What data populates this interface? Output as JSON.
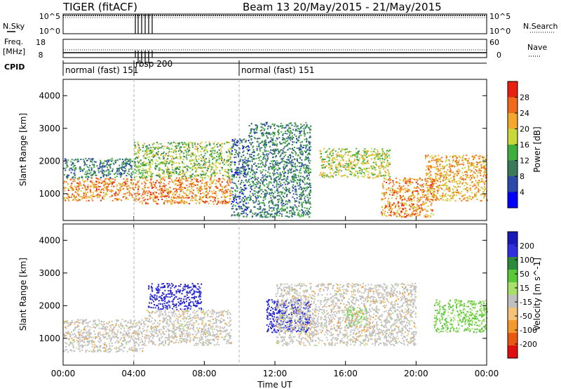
{
  "header": {
    "title_left": "TIGER (fitACF)",
    "title_right": "Beam 13 20/May/2015 - 21/May/2015"
  },
  "strips": {
    "nsky_label": "N.Sky",
    "nsky_ticks": [
      "10^5",
      "10^0"
    ],
    "nsearch_label": "N.Search",
    "nsearch_ticks": [
      "10^5",
      "10^0"
    ],
    "freq_label_1": "Freq.",
    "freq_label_2": "[MHz]",
    "freq_ticks": [
      "18",
      "8"
    ],
    "nave_label": "Nave",
    "nave_ticks": [
      "60",
      "0"
    ],
    "cpid_label": "CPID",
    "cpid_modes": [
      {
        "label": "normal (fast) 151",
        "start_hour": 0
      },
      {
        "label": "rbsp 200",
        "start_hour": 4
      },
      {
        "label": "normal (fast) 151",
        "start_hour": 10
      }
    ]
  },
  "chart_data": [
    {
      "type": "heatmap",
      "panel": "power",
      "ylabel": "Slant Range [km]",
      "ylim": [
        180,
        4500
      ],
      "xlim_hours": [
        0,
        24
      ],
      "yticks": [
        "1000",
        "2000",
        "3000",
        "4000"
      ],
      "colorbar": {
        "label": "Power [dB]",
        "levels": [
          0,
          4,
          8,
          12,
          16,
          20,
          24,
          28,
          32
        ],
        "tick_labels": [
          "4",
          "8",
          "12",
          "16",
          "20",
          "24",
          "28"
        ],
        "colors": [
          "#0000ff",
          "#2a4ba8",
          "#3a7a5a",
          "#3fae3f",
          "#c8d83a",
          "#f2a82c",
          "#f06a1c",
          "#e82010"
        ]
      },
      "bands": [
        {
          "hours": [
            0.0,
            4.0
          ],
          "range_km": [
            800,
            1500
          ],
          "power_db": 24
        },
        {
          "hours": [
            0.0,
            4.0
          ],
          "range_km": [
            1500,
            2100
          ],
          "power_db": 10
        },
        {
          "hours": [
            4.0,
            9.5
          ],
          "range_km": [
            700,
            1500
          ],
          "power_db": 24
        },
        {
          "hours": [
            4.0,
            9.5
          ],
          "range_km": [
            1500,
            2600
          ],
          "power_db": 16
        },
        {
          "hours": [
            9.5,
            10.5
          ],
          "range_km": [
            300,
            2700
          ],
          "power_db": 8
        },
        {
          "hours": [
            10.5,
            14.0
          ],
          "range_km": [
            300,
            3200
          ],
          "power_db": 10
        },
        {
          "hours": [
            14.5,
            18.5
          ],
          "range_km": [
            1500,
            2400
          ],
          "power_db": 18
        },
        {
          "hours": [
            18.0,
            21.0
          ],
          "range_km": [
            300,
            1500
          ],
          "power_db": 24
        },
        {
          "hours": [
            20.5,
            24.0
          ],
          "range_km": [
            800,
            2200
          ],
          "power_db": 22
        }
      ]
    },
    {
      "type": "heatmap",
      "panel": "velocity",
      "ylabel": "Slant Range [km]",
      "xlabel": "Time UT",
      "ylim": [
        180,
        4500
      ],
      "xlim_hours": [
        0,
        24
      ],
      "yticks": [
        "1000",
        "2000",
        "3000",
        "4000"
      ],
      "xticks": [
        "00:00",
        "04:00",
        "08:00",
        "12:00",
        "16:00",
        "20:00",
        "00:00"
      ],
      "colorbar": {
        "label": "Velocity [m s^-1]",
        "tick_labels": [
          "200",
          "100",
          "50",
          "15",
          "-15",
          "-50",
          "-100",
          "-200"
        ],
        "colors": [
          "#1a1ab8",
          "#3030e0",
          "#2e8a3a",
          "#59c83a",
          "#a6e06a",
          "#c0c0c0",
          "#f5c27a",
          "#f29a2e",
          "#e85a14",
          "#e01010"
        ]
      },
      "bands": [
        {
          "hours": [
            0.0,
            4.5
          ],
          "range_km": [
            600,
            1600
          ],
          "velocity": 0
        },
        {
          "hours": [
            4.5,
            9.5
          ],
          "range_km": [
            800,
            1900
          ],
          "velocity": 0
        },
        {
          "hours": [
            4.8,
            7.8
          ],
          "range_km": [
            1900,
            2700
          ],
          "velocity": 180
        },
        {
          "hours": [
            11.5,
            14.0
          ],
          "range_km": [
            1200,
            2200
          ],
          "velocity": 180
        },
        {
          "hours": [
            16.0,
            17.2
          ],
          "range_km": [
            1400,
            2000
          ],
          "velocity": 60
        },
        {
          "hours": [
            12.0,
            20.0
          ],
          "range_km": [
            800,
            2700
          ],
          "velocity": 0
        },
        {
          "hours": [
            21.0,
            24.0
          ],
          "range_km": [
            1200,
            2200
          ],
          "velocity": 60
        }
      ]
    }
  ]
}
